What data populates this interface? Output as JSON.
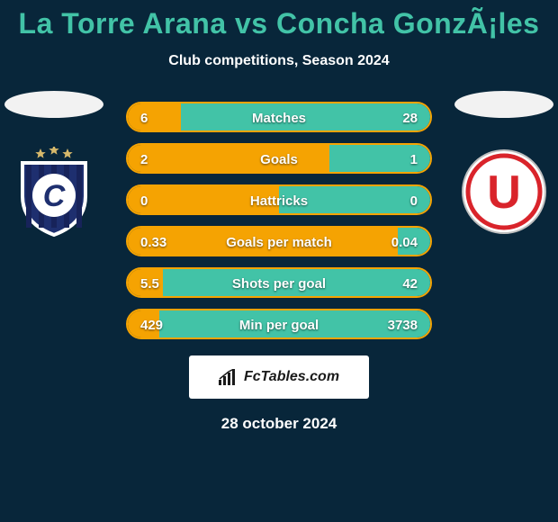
{
  "colors": {
    "background": "#08263a",
    "title": "#42c3a7",
    "text": "#ffffff",
    "accent_left": "#f5a302",
    "bar_right": "#42c3a7",
    "brand_box_bg": "#ffffff",
    "brand_box_text": "#1a1a1a",
    "flag_oval": "#f2f2f2"
  },
  "title": "La Torre Arana vs Concha GonzÃ¡les",
  "subtitle": "Club competitions, Season 2024",
  "date_text": "28 october 2024",
  "brand_label": "FcTables.com",
  "club_left": {
    "letter": "C",
    "shield_fill": "#1e2f6f",
    "shield_border": "#ffffff",
    "star_color": "#d7b96b"
  },
  "club_right": {
    "letter": "U",
    "circle_fill": "#ffffff",
    "ring_color": "#d9242b",
    "letter_color": "#d9242b"
  },
  "stats": [
    {
      "label": "Matches",
      "left_val": "6",
      "right_val": "28",
      "left_pct": 17.6
    },
    {
      "label": "Goals",
      "left_val": "2",
      "right_val": "1",
      "left_pct": 66.7
    },
    {
      "label": "Hattricks",
      "left_val": "0",
      "right_val": "0",
      "left_pct": 50.0
    },
    {
      "label": "Goals per match",
      "left_val": "0.33",
      "right_val": "0.04",
      "left_pct": 89.2
    },
    {
      "label": "Shots per goal",
      "left_val": "5.5",
      "right_val": "42",
      "left_pct": 11.6
    },
    {
      "label": "Min per goal",
      "left_val": "429",
      "right_val": "3738",
      "left_pct": 10.3
    }
  ]
}
